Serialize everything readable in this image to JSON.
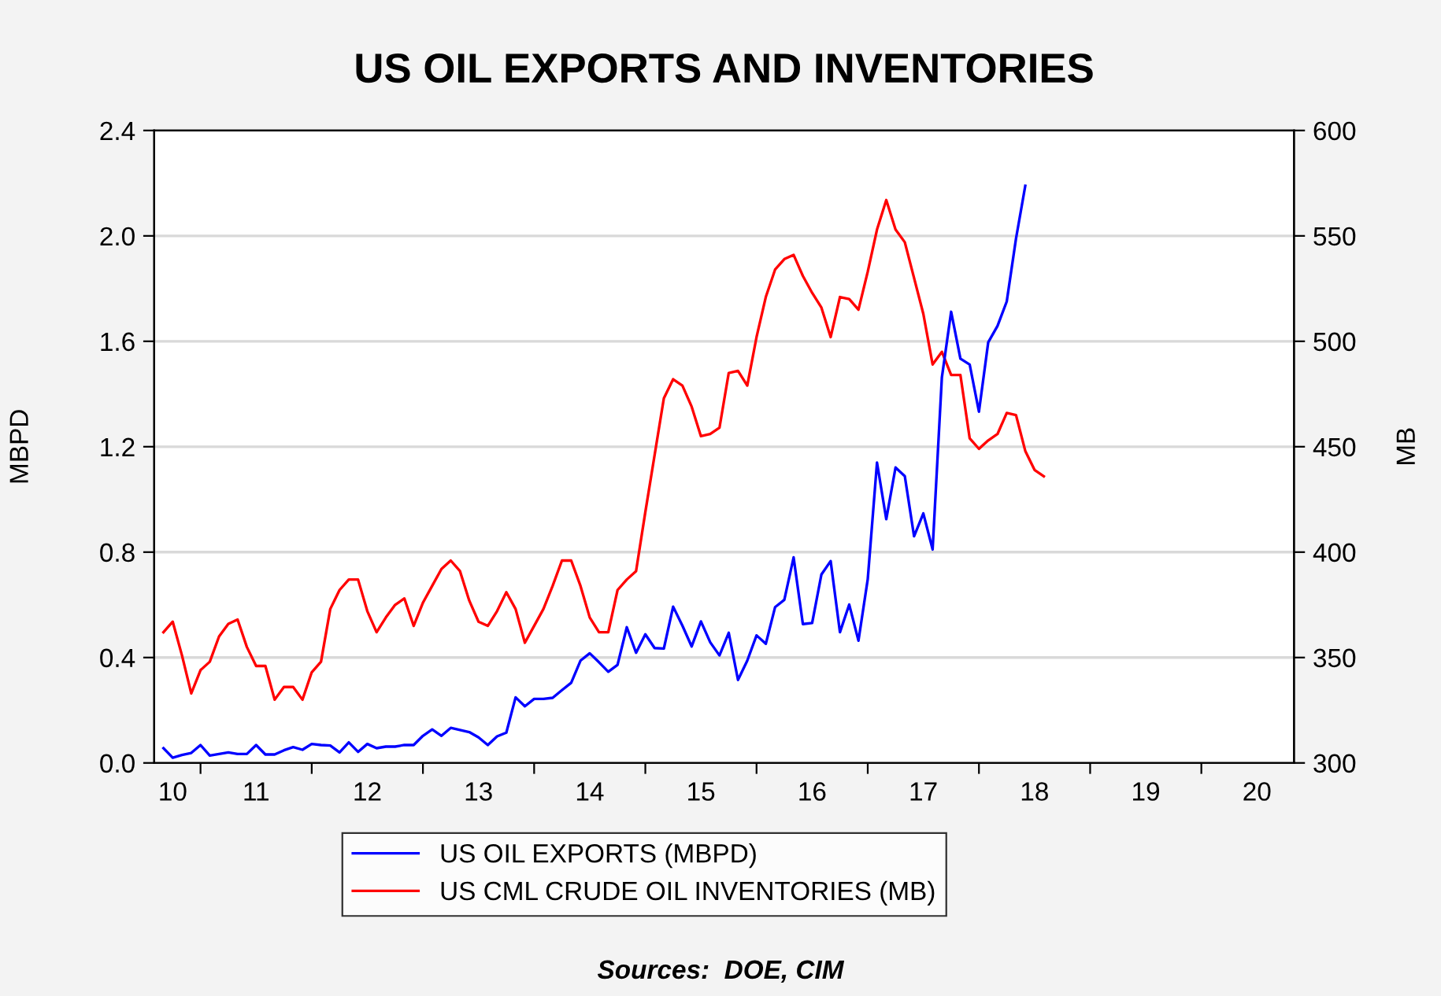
{
  "chart_data": {
    "type": "line",
    "title": "US OIL EXPORTS AND INVENTORIES",
    "ylabel": "MBPD",
    "y2label": "MB",
    "xlim": [
      "2010-08",
      "2020-11"
    ],
    "xticks": [
      {
        "value": "2011",
        "label": null
      },
      {
        "value": "2012",
        "label": null
      },
      {
        "value": "2013",
        "label": null
      },
      {
        "value": "2014",
        "label": null
      },
      {
        "value": "2015",
        "label": null
      },
      {
        "value": "2016",
        "label": null
      },
      {
        "value": "2017",
        "label": null
      },
      {
        "value": "2018",
        "label": null
      },
      {
        "value": "2019",
        "label": null
      },
      {
        "value": "2020",
        "label": null
      },
      {
        "value": "2010-10",
        "label": "10"
      },
      {
        "value": "2011-07",
        "label": "11"
      },
      {
        "value": "2012-07",
        "label": "12"
      },
      {
        "value": "2013-07",
        "label": "13"
      },
      {
        "value": "2014-07",
        "label": "14"
      },
      {
        "value": "2015-07",
        "label": "15"
      },
      {
        "value": "2016-07",
        "label": "16"
      },
      {
        "value": "2017-07",
        "label": "17"
      },
      {
        "value": "2018-07",
        "label": "18"
      },
      {
        "value": "2019-07",
        "label": "19"
      },
      {
        "value": "2020-07",
        "label": "20"
      }
    ],
    "ylim": [
      0,
      2.4
    ],
    "yticks": [
      {
        "value": 0,
        "label": "0.0"
      },
      {
        "value": 0.4,
        "label": "0.4"
      },
      {
        "value": 0.8,
        "label": "0.8"
      },
      {
        "value": 1.2,
        "label": "1.2"
      },
      {
        "value": 1.6,
        "label": "1.6"
      },
      {
        "value": 2.0,
        "label": "2.0"
      },
      {
        "value": 2.4,
        "label": "2.4"
      }
    ],
    "y2lim": [
      300,
      600
    ],
    "y2ticks": [
      300,
      350,
      400,
      450,
      500,
      550,
      600
    ],
    "grid": "y",
    "legend": "bottom",
    "line_style": "solid",
    "marker": "none",
    "annotations": [
      "Sources:  DOE, CIM"
    ],
    "series": [
      {
        "name": "US OIL EXPORTS (MBPD)",
        "color": "#0000ff",
        "x": [
          "2010-09",
          "2010-10",
          "2010-11",
          "2010-12",
          "2011-01",
          "2011-02",
          "2011-03",
          "2011-04",
          "2011-05",
          "2011-06",
          "2011-07",
          "2011-08",
          "2011-09",
          "2011-10",
          "2011-11",
          "2011-12",
          "2012-01",
          "2012-02",
          "2012-03",
          "2012-04",
          "2012-05",
          "2012-06",
          "2012-07",
          "2012-08",
          "2012-09",
          "2012-10",
          "2012-11",
          "2012-12",
          "2013-01",
          "2013-02",
          "2013-03",
          "2013-04",
          "2013-05",
          "2013-06",
          "2013-07",
          "2013-08",
          "2013-09",
          "2013-10",
          "2013-11",
          "2013-12",
          "2014-01",
          "2014-02",
          "2014-03",
          "2014-04",
          "2014-05",
          "2014-06",
          "2014-07",
          "2014-08",
          "2014-09",
          "2014-10",
          "2014-11",
          "2014-12",
          "2015-01",
          "2015-02",
          "2015-03",
          "2015-04",
          "2015-05",
          "2015-06",
          "2015-07",
          "2015-08",
          "2015-09",
          "2015-10",
          "2015-11",
          "2015-12",
          "2016-01",
          "2016-02",
          "2016-03",
          "2016-04",
          "2016-05",
          "2016-06",
          "2016-07",
          "2016-08",
          "2016-09",
          "2016-10",
          "2016-11",
          "2016-12",
          "2017-01",
          "2017-02",
          "2017-03",
          "2017-04",
          "2017-05",
          "2017-06",
          "2017-07",
          "2017-08",
          "2017-09",
          "2017-10",
          "2017-11",
          "2017-12",
          "2018-01",
          "2018-02",
          "2018-03",
          "2018-04",
          "2018-05",
          "2018-06"
        ],
        "values": [
          0.056,
          0.02,
          0.03,
          0.038,
          0.068,
          0.028,
          0.034,
          0.04,
          0.034,
          0.034,
          0.068,
          0.032,
          0.032,
          0.048,
          0.06,
          0.05,
          0.072,
          0.068,
          0.066,
          0.04,
          0.078,
          0.042,
          0.072,
          0.056,
          0.062,
          0.062,
          0.068,
          0.068,
          0.103,
          0.127,
          0.103,
          0.133,
          0.125,
          0.117,
          0.097,
          0.068,
          0.101,
          0.115,
          0.249,
          0.215,
          0.243,
          0.243,
          0.247,
          0.276,
          0.304,
          0.388,
          0.416,
          0.382,
          0.346,
          0.372,
          0.515,
          0.418,
          0.488,
          0.436,
          0.434,
          0.593,
          0.521,
          0.442,
          0.537,
          0.458,
          0.408,
          0.494,
          0.315,
          0.388,
          0.484,
          0.452,
          0.591,
          0.619,
          0.78,
          0.527,
          0.531,
          0.715,
          0.766,
          0.496,
          0.601,
          0.464,
          0.697,
          1.14,
          0.925,
          1.121,
          1.088,
          0.86,
          0.947,
          0.81,
          1.463,
          1.712,
          1.534,
          1.512,
          1.333,
          1.596,
          1.658,
          1.751,
          1.99,
          2.19
        ]
      },
      {
        "name": "US CML CRUDE OIL INVENTORIES (MB)",
        "color": "#ff0000",
        "axis": "y2",
        "x": [
          "2010-09",
          "2010-10",
          "2010-11",
          "2010-12",
          "2011-01",
          "2011-02",
          "2011-03",
          "2011-04",
          "2011-05",
          "2011-06",
          "2011-07",
          "2011-08",
          "2011-09",
          "2011-10",
          "2011-11",
          "2011-12",
          "2012-01",
          "2012-02",
          "2012-03",
          "2012-04",
          "2012-05",
          "2012-06",
          "2012-07",
          "2012-08",
          "2012-09",
          "2012-10",
          "2012-11",
          "2012-12",
          "2013-01",
          "2013-02",
          "2013-03",
          "2013-04",
          "2013-05",
          "2013-06",
          "2013-07",
          "2013-08",
          "2013-09",
          "2013-10",
          "2013-11",
          "2013-12",
          "2014-01",
          "2014-02",
          "2014-03",
          "2014-04",
          "2014-05",
          "2014-06",
          "2014-07",
          "2014-08",
          "2014-09",
          "2014-10",
          "2014-11",
          "2014-12",
          "2015-01",
          "2015-02",
          "2015-03",
          "2015-04",
          "2015-05",
          "2015-06",
          "2015-07",
          "2015-08",
          "2015-09",
          "2015-10",
          "2015-11",
          "2015-12",
          "2016-01",
          "2016-02",
          "2016-03",
          "2016-04",
          "2016-05",
          "2016-06",
          "2016-07",
          "2016-08",
          "2016-09",
          "2016-10",
          "2016-11",
          "2016-12",
          "2017-01",
          "2017-02",
          "2017-03",
          "2017-04",
          "2017-05",
          "2017-06",
          "2017-07",
          "2017-08",
          "2017-09",
          "2017-10",
          "2017-11",
          "2017-12",
          "2018-01",
          "2018-02",
          "2018-03",
          "2018-04",
          "2018-05",
          "2018-06",
          "2018-07",
          "2018-08"
        ],
        "values": [
          362,
          367,
          351,
          333,
          344,
          348,
          360,
          366,
          368,
          355,
          346,
          346,
          330,
          336,
          336,
          330,
          343,
          348,
          373,
          382,
          387,
          387,
          372,
          362,
          369,
          375,
          378,
          365,
          376,
          384,
          392,
          396,
          391,
          377,
          367,
          365,
          372,
          381,
          373,
          357,
          365,
          373,
          384,
          396,
          396,
          384,
          369,
          362,
          362,
          382,
          387,
          391,
          419,
          446,
          473,
          482,
          479,
          469,
          455,
          456,
          459,
          485,
          486,
          479,
          502,
          521,
          534,
          539,
          541,
          531,
          523,
          516,
          502,
          521,
          520,
          515,
          533,
          553,
          567,
          553,
          547,
          530,
          513,
          489,
          495,
          484,
          484,
          454,
          449,
          453,
          456,
          466,
          465,
          448,
          439,
          436
        ]
      }
    ]
  }
}
